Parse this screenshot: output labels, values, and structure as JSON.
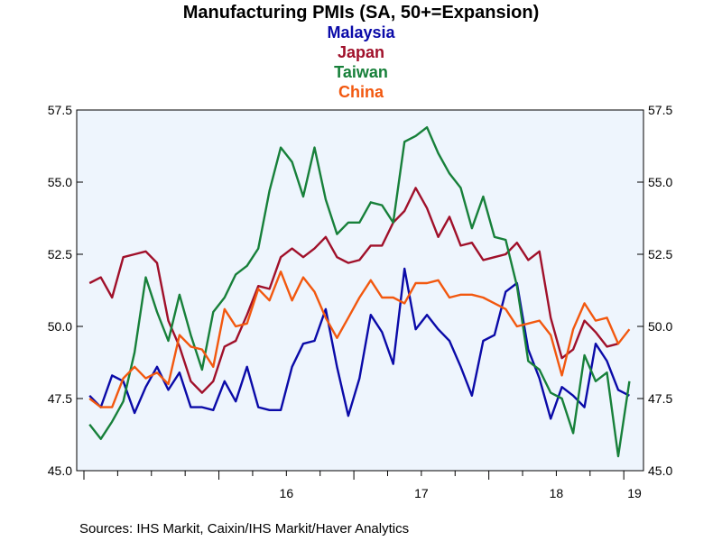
{
  "chart_data": {
    "type": "line",
    "title": "Manufacturing PMIs (SA, 50+=Expansion)",
    "source": "Sources:  IHS Markit, Caixin/IHS Markit/Haver Analytics",
    "x_start": "2015-01",
    "x_labels": [
      {
        "label": "16",
        "year": 2016
      },
      {
        "label": "17",
        "year": 2017
      },
      {
        "label": "18",
        "year": 2018
      },
      {
        "label": "19",
        "year": 2019
      }
    ],
    "ylim": [
      45.0,
      57.5
    ],
    "yticks": [
      "45.0",
      "47.5",
      "50.0",
      "52.5",
      "55.0",
      "57.5"
    ],
    "grid": false,
    "legend_placement": "top-center",
    "background": "#eef5fd",
    "series": [
      {
        "name": "Malaysia",
        "color": "#0a0aa8",
        "values": [
          47.6,
          47.2,
          48.3,
          48.1,
          47.0,
          47.9,
          48.6,
          47.8,
          48.4,
          47.2,
          47.2,
          47.1,
          48.1,
          47.4,
          48.6,
          47.2,
          47.1,
          47.1,
          48.6,
          49.4,
          49.5,
          50.6,
          48.6,
          46.9,
          48.2,
          50.4,
          49.8,
          48.7,
          52.0,
          49.9,
          50.4,
          49.9,
          49.5,
          48.6,
          47.6,
          49.5,
          49.7,
          51.2,
          51.5,
          49.2,
          48.2,
          46.8,
          47.9,
          47.6,
          47.2,
          49.4,
          48.8,
          47.8,
          47.6
        ]
      },
      {
        "name": "Japan",
        "color": "#a0102a",
        "values": [
          51.5,
          51.7,
          51.0,
          52.4,
          52.5,
          52.6,
          52.2,
          50.2,
          49.3,
          48.1,
          47.7,
          48.1,
          49.3,
          49.5,
          50.4,
          51.4,
          51.3,
          52.4,
          52.7,
          52.4,
          52.7,
          53.1,
          52.4,
          52.2,
          52.3,
          52.8,
          52.8,
          53.6,
          54.0,
          54.8,
          54.1,
          53.1,
          53.8,
          52.8,
          52.9,
          52.3,
          52.4,
          52.5,
          52.9,
          52.3,
          52.6,
          50.3,
          48.9,
          49.2,
          50.2,
          49.8,
          49.3,
          49.4
        ]
      },
      {
        "name": "Taiwan",
        "color": "#17803a",
        "values": [
          46.6,
          46.1,
          46.7,
          47.4,
          49.1,
          51.7,
          50.5,
          49.5,
          51.1,
          49.7,
          48.5,
          50.5,
          51.0,
          51.8,
          52.1,
          52.7,
          54.7,
          56.2,
          55.7,
          54.5,
          56.2,
          54.4,
          53.2,
          53.6,
          53.6,
          54.3,
          54.2,
          53.6,
          56.4,
          56.6,
          56.9,
          56.0,
          55.3,
          54.8,
          53.4,
          54.5,
          53.1,
          53.0,
          51.4,
          48.8,
          48.5,
          47.7,
          47.5,
          46.3,
          49.0,
          48.1,
          48.4,
          45.5,
          48.1
        ]
      },
      {
        "name": "China",
        "color": "#f2580f",
        "values": [
          47.5,
          47.2,
          47.2,
          48.2,
          48.6,
          48.2,
          48.4,
          48.0,
          49.7,
          49.3,
          49.2,
          48.6,
          50.6,
          50.0,
          50.1,
          51.3,
          50.9,
          51.9,
          50.9,
          51.7,
          51.2,
          50.3,
          49.6,
          50.3,
          51.0,
          51.6,
          51.0,
          51.0,
          50.8,
          51.5,
          51.5,
          51.6,
          51.0,
          51.1,
          51.1,
          51.0,
          50.8,
          50.6,
          50.0,
          50.1,
          50.2,
          49.7,
          48.3,
          49.9,
          50.8,
          50.2,
          50.3,
          49.4,
          49.9
        ]
      }
    ]
  }
}
